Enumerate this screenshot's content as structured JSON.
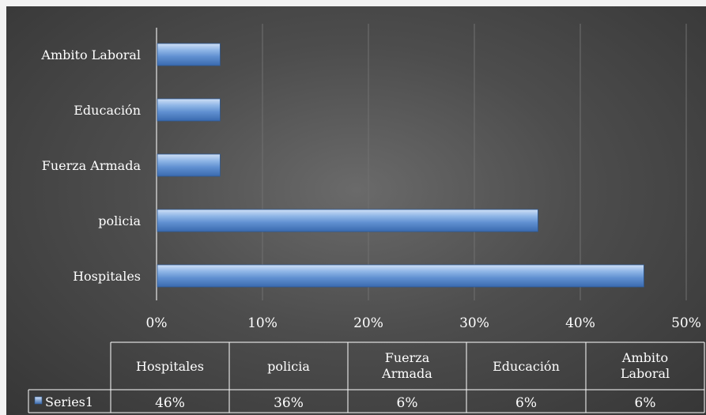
{
  "chart_data": {
    "type": "bar",
    "orientation": "horizontal",
    "categories": [
      "Hospitales",
      "policia",
      "Fuerza Armada",
      "Educación",
      "Ambito Laboral"
    ],
    "series": [
      {
        "name": "Series1",
        "values": [
          0.46,
          0.36,
          0.06,
          0.06,
          0.06
        ]
      }
    ],
    "xlim": [
      0,
      0.5
    ],
    "x_ticks": [
      0,
      0.1,
      0.2,
      0.3,
      0.4,
      0.5
    ],
    "x_tick_labels": [
      "0%",
      "10%",
      "20%",
      "30%",
      "40%",
      "50%"
    ],
    "grid": true,
    "data_table": {
      "headers": [
        "Hospitales",
        "policia",
        "Fuerza Armada",
        "Educación",
        "Ambito Laboral"
      ],
      "row_label": "Series1",
      "cells": [
        "46%",
        "36%",
        "6%",
        "6%",
        "6%"
      ]
    },
    "colors": {
      "bar_light": "#a9c7ec",
      "bar_mid": "#6a9ad8",
      "bar_dark": "#3c6fb4",
      "background_center": "#6a6a6a",
      "background_edge": "#363636",
      "text": "#ffffff",
      "grid": "#6e6e6e"
    }
  }
}
